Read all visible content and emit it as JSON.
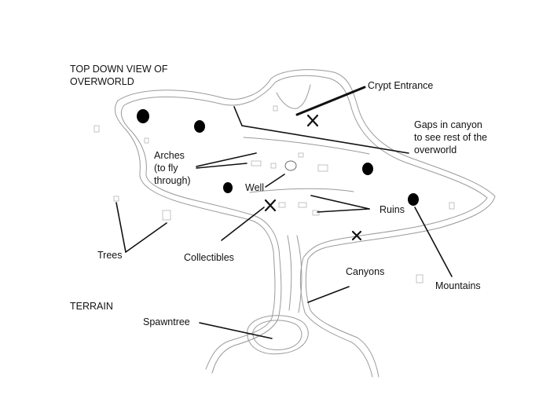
{
  "title_lines": [
    "TOP DOWN VIEW OF",
    "OVERWORLD"
  ],
  "terrain_label": "TERRAIN",
  "labels": {
    "crypt_entrance": [
      "Crypt Entrance"
    ],
    "gaps": [
      "Gaps in canyon",
      "to see rest of the",
      "overworld"
    ],
    "arches": [
      "Arches",
      "(to fly",
      "through)"
    ],
    "well": [
      "Well"
    ],
    "ruins": [
      "Ruins"
    ],
    "trees": [
      "Trees"
    ],
    "collectibles": [
      "Collectibles"
    ],
    "canyons": [
      "Canyons"
    ],
    "mountains": [
      "Mountains"
    ],
    "spawntree": [
      "Spawntree"
    ]
  },
  "colors": {
    "sketch": "#9a9a9a",
    "ink": "#111111",
    "background": "#ffffff"
  },
  "icons": {
    "mountain": "filled-blob",
    "collectible": "x-mark"
  }
}
